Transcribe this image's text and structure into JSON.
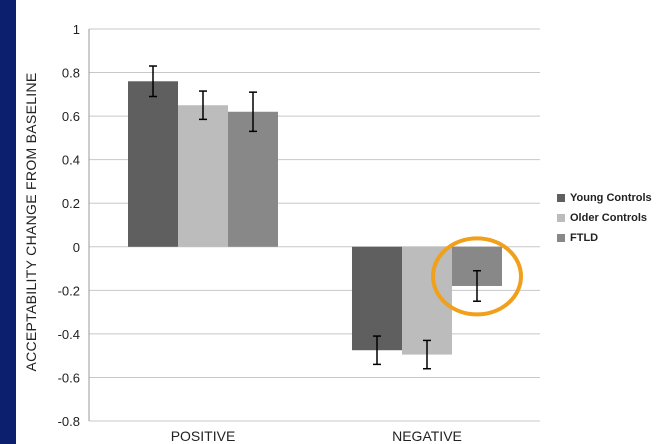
{
  "chart_data": {
    "type": "bar",
    "categories": [
      "POSITIVE",
      "NEGATIVE"
    ],
    "series": [
      {
        "name": "Young Controls",
        "values": [
          0.76,
          -0.475
        ],
        "error": [
          0.07,
          0.065
        ],
        "color": "#5f5f5f"
      },
      {
        "name": "Older Controls",
        "values": [
          0.65,
          -0.495
        ],
        "error": [
          0.065,
          0.065
        ],
        "color": "#bcbcbc"
      },
      {
        "name": "FTLD",
        "values": [
          0.62,
          -0.18
        ],
        "error": [
          0.09,
          0.07
        ],
        "color": "#888888"
      }
    ],
    "ylabel": "ACCEPTABILITY CHANGE FROM BASELINE",
    "xlabel": "",
    "ylim": [
      -0.8,
      1
    ],
    "yticks": [
      "1",
      "0.8",
      "0.6",
      "0.4",
      "0.2",
      "0",
      "-0.2",
      "-0.4",
      "-0.6",
      "-0.8"
    ],
    "grid": true,
    "legend_position": "right",
    "highlight": {
      "category": "NEGATIVE",
      "series": "FTLD",
      "color": "#f0a01a",
      "shape": "circle"
    }
  }
}
